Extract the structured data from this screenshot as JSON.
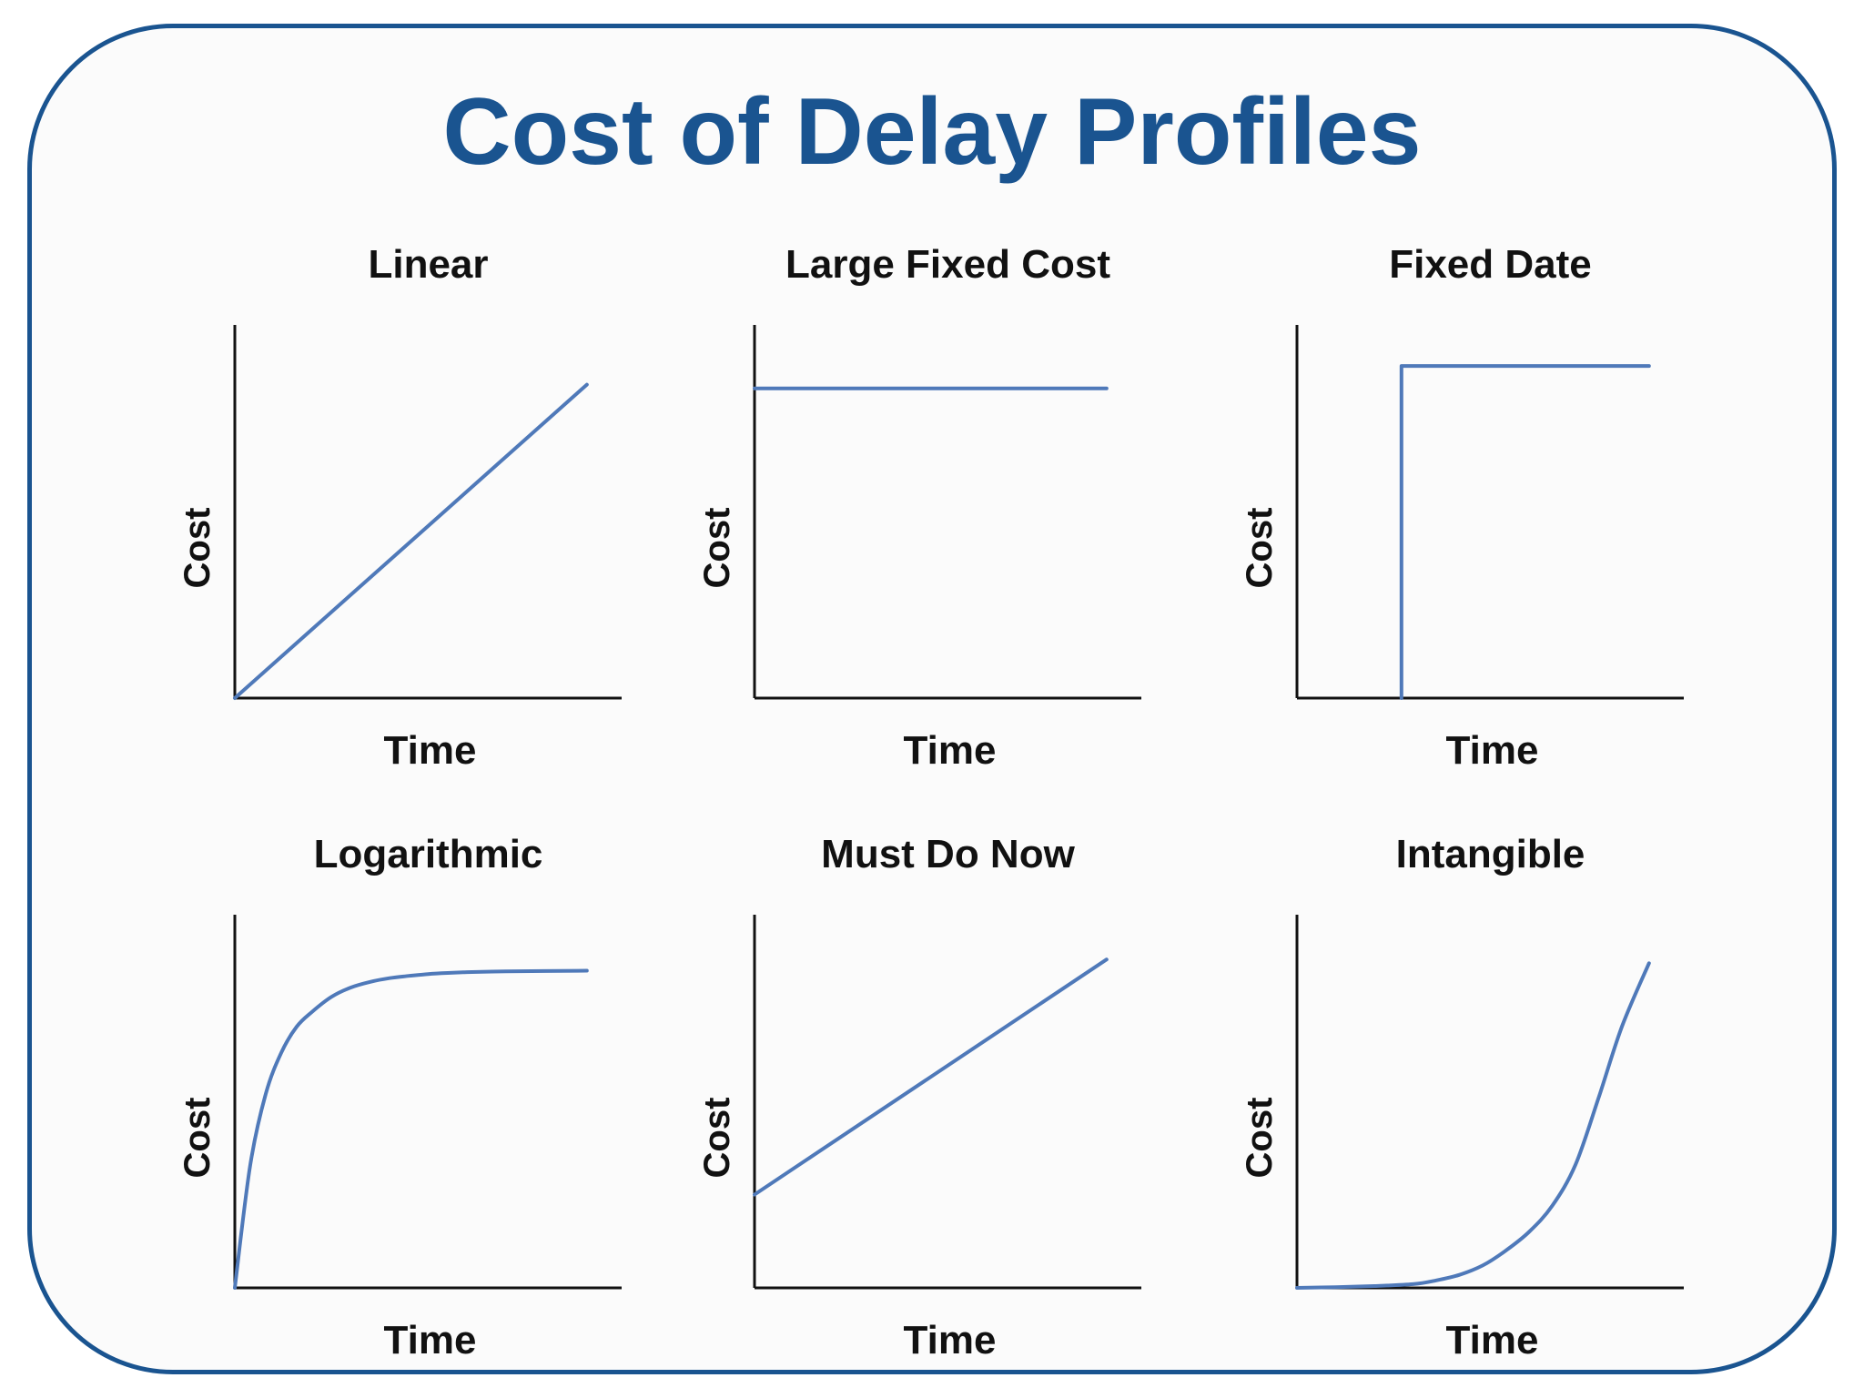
{
  "page": {
    "title": "Cost of Delay Profiles",
    "frame_color": "#1a5490",
    "line_color": "#4f79b9"
  },
  "chart_data": [
    {
      "type": "line",
      "title": "Linear",
      "xlabel": "Time",
      "ylabel": "Cost",
      "xlim": [
        0,
        10
      ],
      "ylim": [
        0,
        10
      ],
      "series": [
        {
          "x": [
            0,
            9.1
          ],
          "values": [
            0,
            8.4
          ]
        }
      ]
    },
    {
      "type": "line",
      "title": "Large Fixed Cost",
      "xlabel": "Time",
      "ylabel": "Cost",
      "xlim": [
        0,
        10
      ],
      "ylim": [
        0,
        10
      ],
      "series": [
        {
          "x": [
            0,
            9.1
          ],
          "values": [
            8.3,
            8.3
          ]
        }
      ]
    },
    {
      "type": "line",
      "title": "Fixed Date",
      "xlabel": "Time",
      "ylabel": "Cost",
      "xlim": [
        0,
        10
      ],
      "ylim": [
        0,
        10
      ],
      "series": [
        {
          "x": [
            2.7,
            2.7,
            9.1
          ],
          "values": [
            0,
            8.9,
            8.9
          ]
        }
      ]
    },
    {
      "type": "line",
      "title": "Logarithmic",
      "xlabel": "Time",
      "ylabel": "Cost",
      "xlim": [
        0,
        10
      ],
      "ylim": [
        0,
        10
      ],
      "series": [
        {
          "x": [
            0,
            0.4,
            0.8,
            1.2,
            1.6,
            2.0,
            2.5,
            3.0,
            3.5,
            4.0,
            4.5,
            5.0,
            5.5,
            6.0,
            7.0,
            8.0,
            9.1
          ],
          "values": [
            0,
            3.3,
            5.2,
            6.3,
            7.0,
            7.4,
            7.8,
            8.05,
            8.2,
            8.3,
            8.36,
            8.41,
            8.44,
            8.46,
            8.48,
            8.49,
            8.5
          ]
        }
      ]
    },
    {
      "type": "line",
      "title": "Must Do Now",
      "xlabel": "Time",
      "ylabel": "Cost",
      "xlim": [
        0,
        10
      ],
      "ylim": [
        0,
        10
      ],
      "series": [
        {
          "x": [
            0,
            9.1
          ],
          "values": [
            2.5,
            8.8
          ]
        }
      ]
    },
    {
      "type": "line",
      "title": "Intangible",
      "xlabel": "Time",
      "ylabel": "Cost",
      "xlim": [
        0,
        10
      ],
      "ylim": [
        0,
        10
      ],
      "series": [
        {
          "x": [
            0,
            1.0,
            2.0,
            3.0,
            3.6,
            4.2,
            4.8,
            5.4,
            6.0,
            6.6,
            7.2,
            7.8,
            8.4,
            9.1
          ],
          "values": [
            0,
            0.02,
            0.05,
            0.1,
            0.2,
            0.35,
            0.6,
            1.0,
            1.5,
            2.2,
            3.3,
            5.1,
            7.0,
            8.7
          ]
        }
      ]
    }
  ]
}
